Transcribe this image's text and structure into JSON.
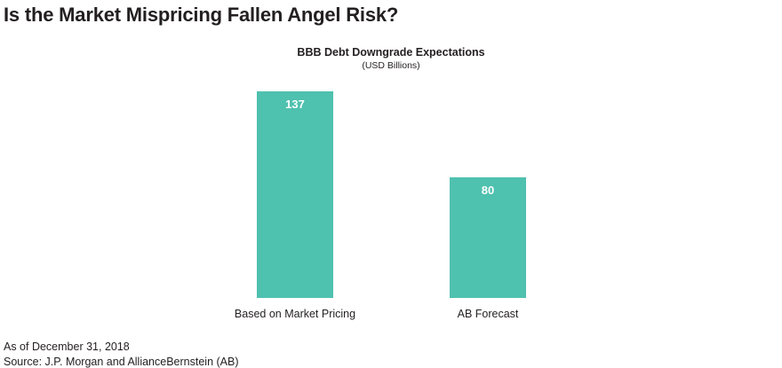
{
  "page": {
    "title": "Is the Market Mispricing Fallen Angel Risk?",
    "footnote_date": "As of December 31, 2018",
    "footnote_source": "Source: J.P. Morgan and AllianceBernstein (AB)"
  },
  "chart_data": {
    "type": "bar",
    "title": "BBB Debt Downgrade Expectations",
    "subtitle": "(USD Billions)",
    "categories": [
      "Based on Market Pricing",
      "AB Forecast"
    ],
    "values": [
      137,
      80
    ],
    "data_labels": [
      "137",
      "80"
    ],
    "xlabel": "",
    "ylabel": "",
    "ylim": [
      0,
      137
    ],
    "grid": false,
    "legend": "none",
    "bar_color": "#4fc1af",
    "label_color": "#ffffff"
  }
}
